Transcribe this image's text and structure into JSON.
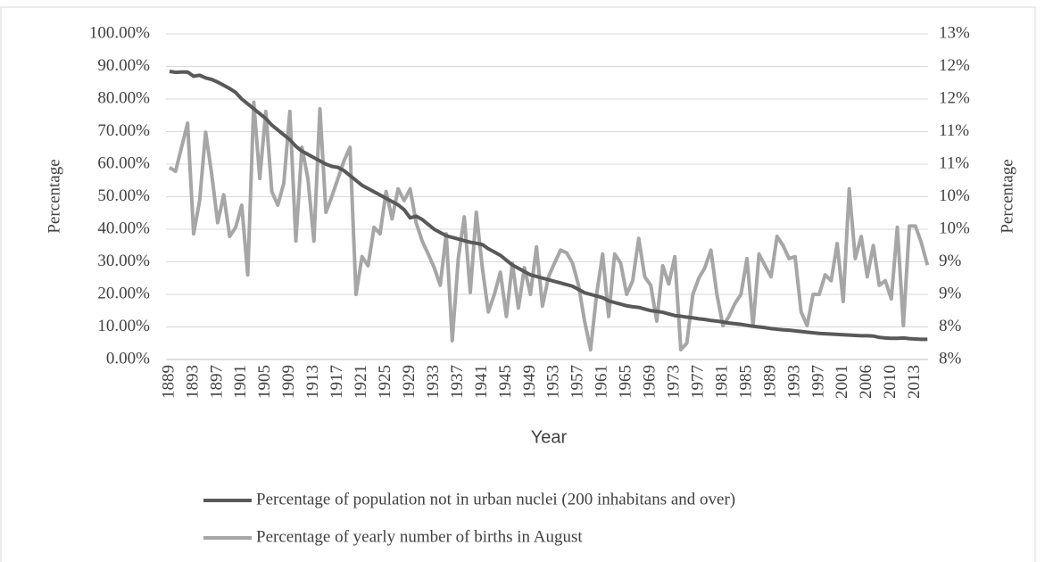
{
  "chart_data": {
    "type": "line",
    "x_label": "Year",
    "y_label": "Percentage",
    "y2_label": "Percentage",
    "categories": [
      "1889",
      null,
      null,
      null,
      "1893",
      null,
      null,
      null,
      "1897",
      null,
      null,
      null,
      "1901",
      null,
      null,
      null,
      "1905",
      null,
      null,
      null,
      "1909",
      null,
      null,
      null,
      "1913",
      null,
      null,
      null,
      "1917",
      null,
      null,
      null,
      "1921",
      null,
      null,
      null,
      "1925",
      null,
      null,
      null,
      "1929",
      null,
      null,
      null,
      "1933",
      null,
      null,
      null,
      "1937",
      null,
      null,
      null,
      "1941",
      null,
      null,
      null,
      "1945",
      null,
      null,
      null,
      "1949",
      null,
      null,
      null,
      "1953",
      null,
      null,
      null,
      "1957",
      null,
      null,
      null,
      "1961",
      null,
      null,
      null,
      "1965",
      null,
      null,
      null,
      "1969",
      null,
      null,
      null,
      "1973",
      null,
      null,
      null,
      "1977",
      null,
      null,
      null,
      "1981",
      null,
      null,
      null,
      "1985",
      null,
      null,
      null,
      "1989",
      null,
      null,
      null,
      "1993",
      null,
      null,
      null,
      "1997",
      null,
      null,
      null,
      "2001",
      null,
      null,
      null,
      "2006",
      null,
      null,
      null,
      "2010",
      null,
      null,
      null,
      "2013",
      null,
      null
    ],
    "ylim": [
      0,
      100
    ],
    "yticks": [
      {
        "value": 0,
        "label": "0.00%"
      },
      {
        "value": 10,
        "label": "10.00%"
      },
      {
        "value": 20,
        "label": "20.00%"
      },
      {
        "value": 30,
        "label": "30.00%"
      },
      {
        "value": 40,
        "label": "40.00%"
      },
      {
        "value": 50,
        "label": "50.00%"
      },
      {
        "value": 60,
        "label": "60.00%"
      },
      {
        "value": 70,
        "label": "70.00%"
      },
      {
        "value": 80,
        "label": "80.00%"
      },
      {
        "value": 90,
        "label": "90.00%"
      },
      {
        "value": 100,
        "label": "100.00%"
      }
    ],
    "y2lim": [
      7.5,
      12.5
    ],
    "y2ticks": [
      {
        "value": 7.5,
        "label": "8%"
      },
      {
        "value": 8,
        "label": "8%"
      },
      {
        "value": 8.5,
        "label": "9%"
      },
      {
        "value": 9,
        "label": "9%"
      },
      {
        "value": 9.5,
        "label": "10%"
      },
      {
        "value": 10,
        "label": "10%"
      },
      {
        "value": 10.5,
        "label": "11%"
      },
      {
        "value": 11,
        "label": "11%"
      },
      {
        "value": 11.5,
        "label": "12%"
      },
      {
        "value": 12,
        "label": "12%"
      },
      {
        "value": 12.5,
        "label": "13%"
      }
    ],
    "grid": true,
    "legend": "bottom",
    "series": [
      {
        "name": "Percentage of population not in urban nuclei (200 inhabitans and over)",
        "color": "#595959",
        "values": [
          88.5,
          88.2,
          88.3,
          88.3,
          87,
          87.3,
          86.5,
          86,
          85.2,
          84.2,
          83.2,
          82,
          80,
          78.5,
          77,
          75.5,
          74,
          72,
          70.5,
          69,
          67.5,
          65.5,
          64,
          63,
          62,
          61,
          60,
          59.3,
          59,
          58,
          56.5,
          55,
          53.5,
          52.5,
          51.5,
          50.5,
          49.5,
          48.5,
          47.5,
          46,
          43.5,
          44,
          43,
          41.5,
          40,
          39,
          38,
          37.5,
          37,
          36.5,
          36,
          35.7,
          35.3,
          34,
          33,
          32,
          30.5,
          29,
          28,
          27,
          26,
          25.5,
          25,
          24.5,
          24,
          23.5,
          23,
          22.5,
          21.5,
          20.5,
          20,
          19.5,
          19,
          18,
          17.5,
          17,
          16.5,
          16.2,
          16,
          15.5,
          15,
          14.8,
          14.5,
          14,
          13.5,
          13.3,
          13,
          12.8,
          12.5,
          12.3,
          12,
          11.8,
          11.5,
          11.2,
          11,
          10.8,
          10.5,
          10.2,
          10,
          9.8,
          9.5,
          9.3,
          9.1,
          9,
          8.8,
          8.6,
          8.4,
          8.2,
          8,
          7.9,
          7.8,
          7.7,
          7.6,
          7.5,
          7.4,
          7.3,
          7.3,
          7.2,
          6.8,
          6.6,
          6.5,
          6.5,
          6.6,
          6.4,
          6.3,
          6.2,
          6.2
        ]
      },
      {
        "name": "Percentage of yearly number of births in August",
        "color": "#a6a6a6",
        "axis": "y2",
        "values": [
          10.45,
          10.39,
          10.76,
          11.13,
          9.43,
          9.94,
          10.99,
          10.35,
          9.6,
          10.03,
          9.39,
          9.53,
          9.87,
          8.8,
          11.45,
          10.28,
          11.31,
          10.08,
          9.87,
          10.21,
          11.31,
          9.32,
          10.76,
          10.28,
          9.32,
          11.35,
          9.76,
          10.01,
          10.28,
          10.55,
          10.76,
          8.5,
          9.08,
          8.94,
          9.53,
          9.43,
          10.08,
          9.66,
          10.12,
          9.94,
          10.12,
          9.6,
          9.32,
          9.12,
          8.91,
          8.64,
          9.43,
          7.79,
          9.05,
          9.69,
          8.53,
          9.76,
          8.91,
          8.23,
          8.5,
          8.84,
          8.16,
          8.98,
          8.29,
          8.91,
          8.5,
          9.23,
          8.32,
          8.77,
          8.98,
          9.18,
          9.14,
          8.98,
          8.64,
          8.09,
          7.65,
          8.5,
          9.12,
          8.16,
          9.12,
          8.98,
          8.5,
          8.71,
          9.36,
          8.77,
          8.64,
          8.09,
          8.94,
          8.66,
          9.08,
          7.65,
          7.75,
          8.5,
          8.75,
          8.91,
          9.18,
          8.5,
          8.02,
          8.16,
          8.36,
          8.5,
          9.05,
          8.02,
          9.12,
          8.94,
          8.77,
          9.39,
          9.25,
          9.05,
          9.08,
          8.23,
          8.02,
          8.5,
          8.5,
          8.8,
          8.71,
          9.28,
          8.39,
          10.12,
          9.05,
          9.39,
          8.77,
          9.25,
          8.64,
          8.71,
          8.43,
          9.53,
          8.02,
          9.55,
          9.55,
          9.29,
          8.95
        ]
      }
    ]
  }
}
